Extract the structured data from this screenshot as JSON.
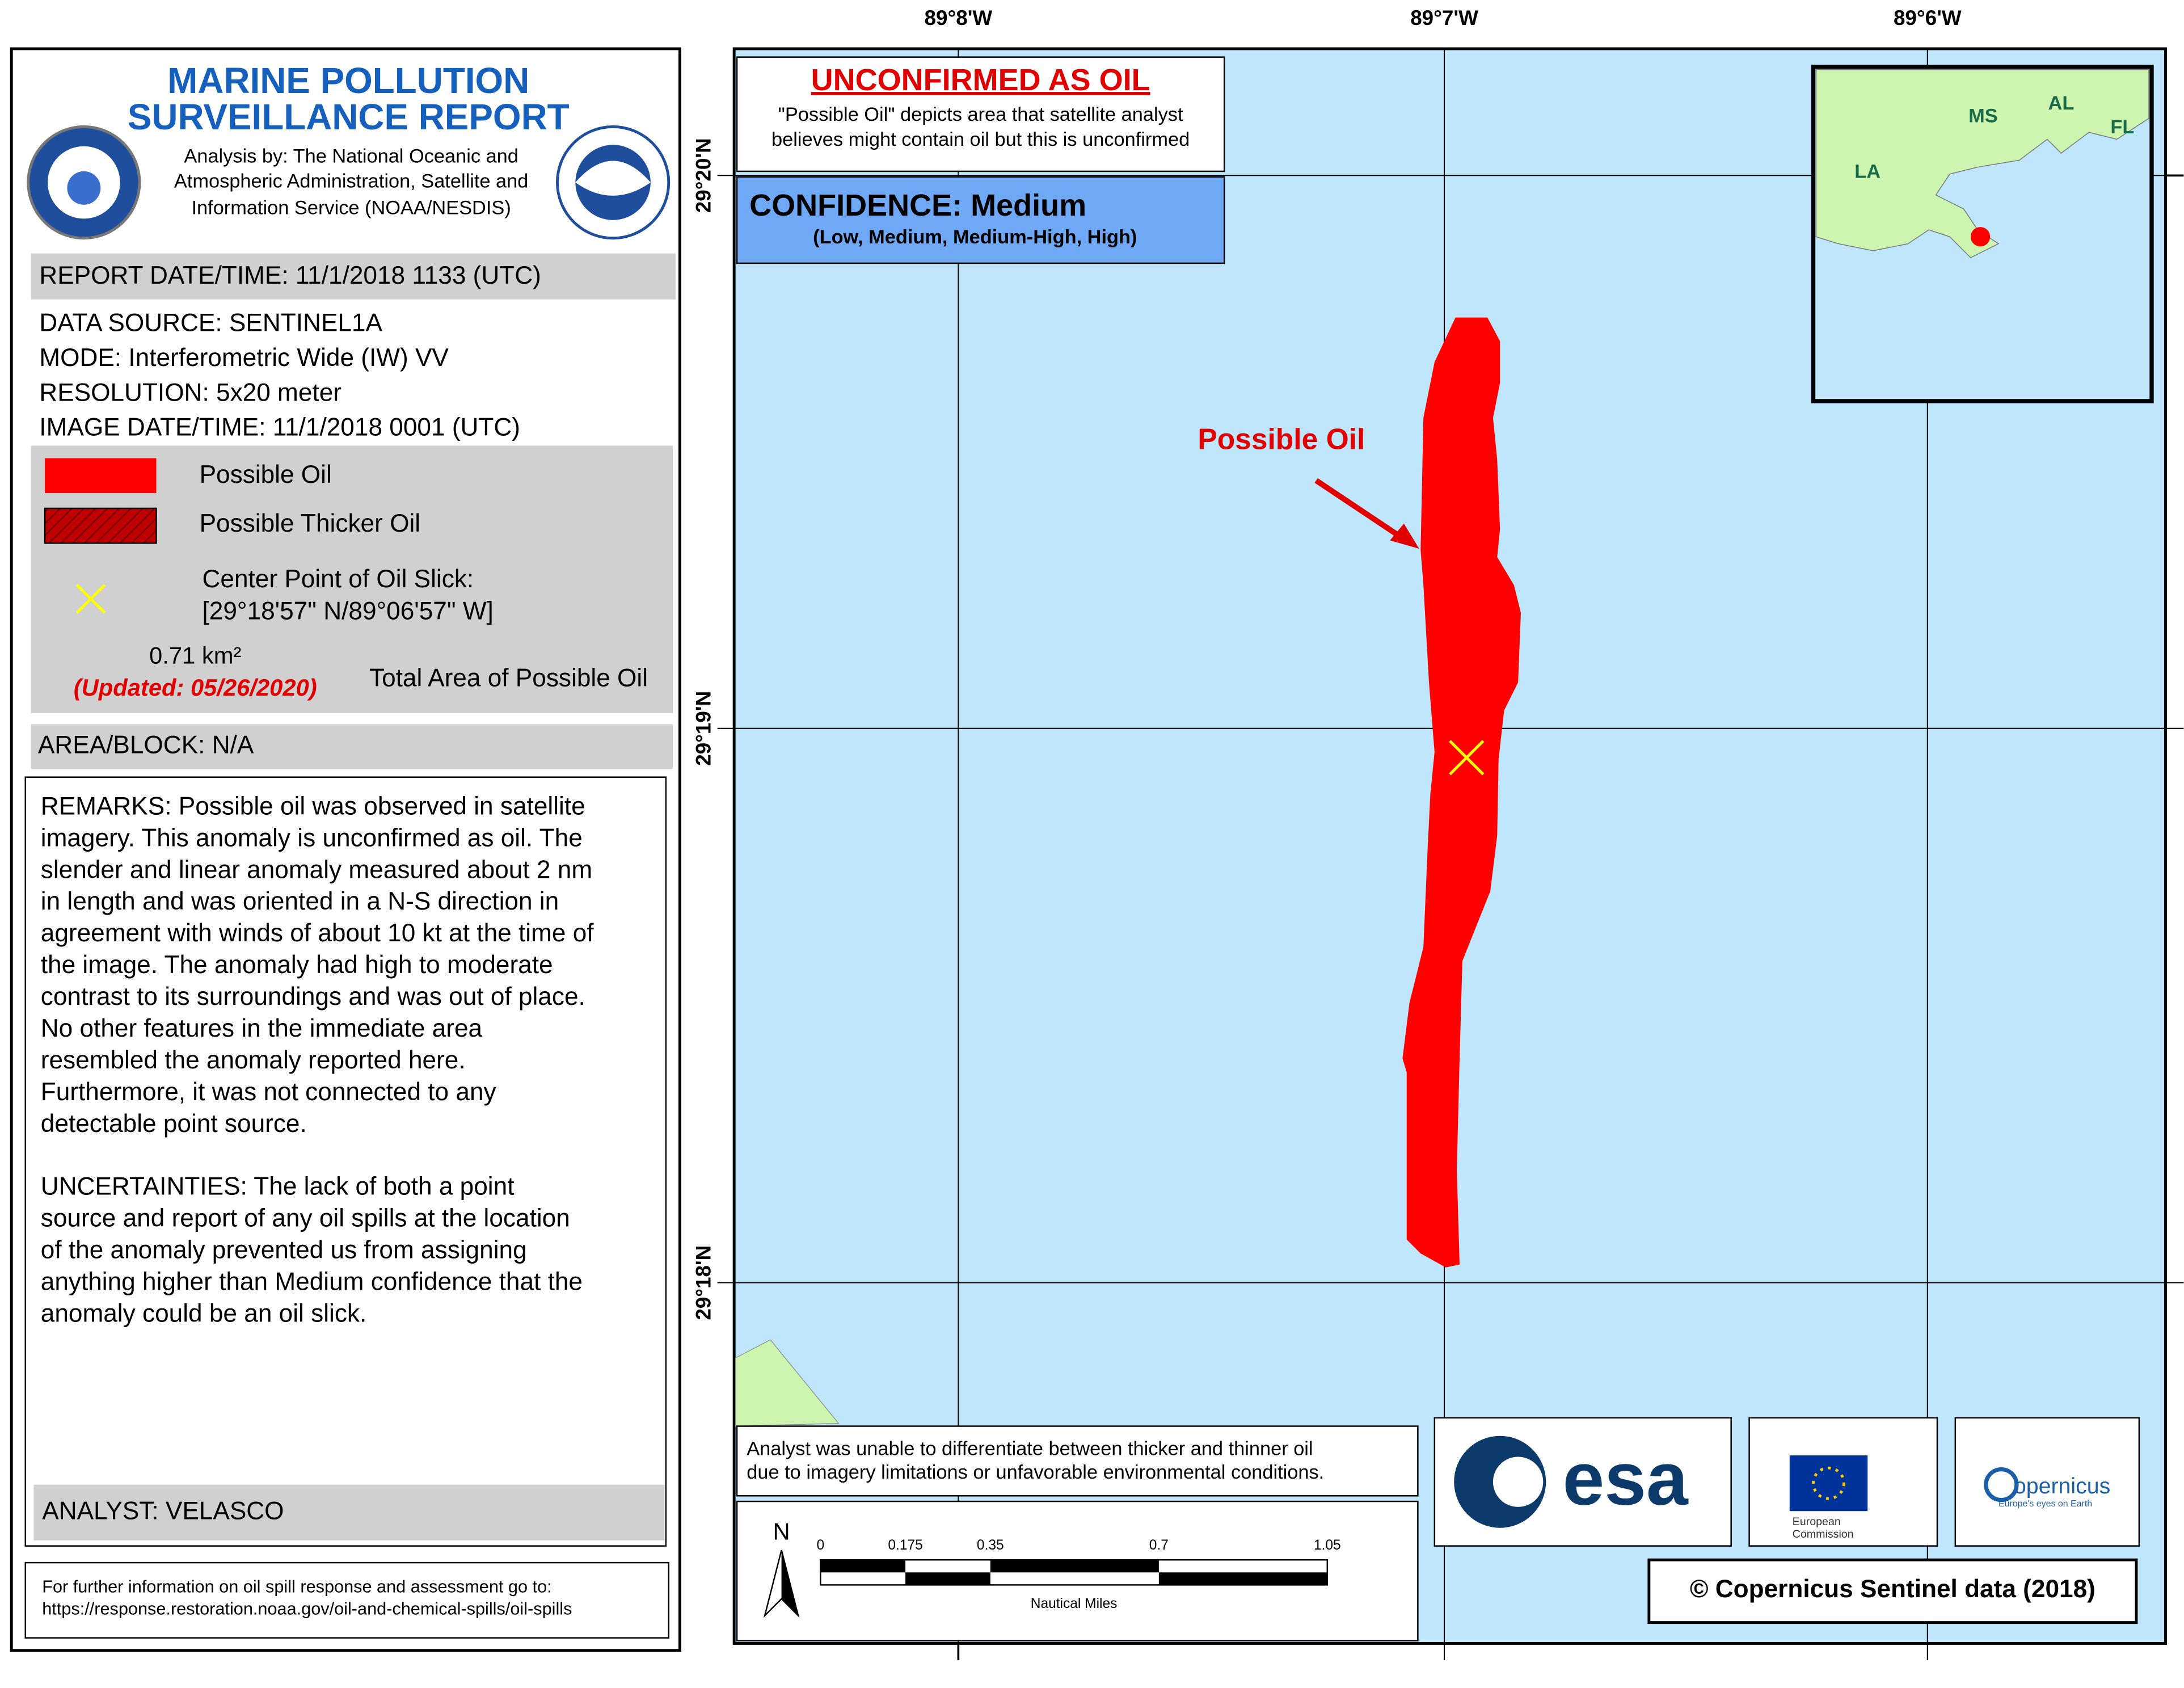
{
  "header": {
    "title_lines": [
      "MARINE POLLUTION",
      "SURVEILLANCE REPORT"
    ],
    "analysis_lines": [
      "Analysis by: The National Oceanic and",
      "Atmospheric Administration, Satellite and",
      "Information Service (NOAA/NESDIS)"
    ]
  },
  "report_datetime": "REPORT DATE/TIME: 11/1/2018 1133 (UTC)",
  "details": [
    "DATA SOURCE: SENTINEL1A",
    "MODE: Interferometric Wide (IW) VV",
    "RESOLUTION: 5x20 meter",
    "IMAGE DATE/TIME: 11/1/2018 0001 (UTC)"
  ],
  "legend": {
    "possible_oil": "Possible Oil",
    "thicker_oil": "Possible Thicker Oil",
    "center_point_lines": [
      "Center Point of Oil Slick:",
      "[29°18'57\" N/89°06'57\" W]"
    ],
    "area": "0.71 km²",
    "updated": "(Updated: 05/26/2020)",
    "area_label": "Total Area of Possible Oil"
  },
  "area_block": "AREA/BLOCK: N/A",
  "remarks_lines": [
    "REMARKS: Possible oil was observed in satellite",
    "imagery. This anomaly is unconfirmed as oil. The",
    "slender and linear anomaly measured about 2 nm",
    "in length and was oriented in a N-S direction in",
    "agreement with winds of about 10 kt at the time of",
    "the image. The anomaly had high to moderate",
    "contrast to its surroundings and was out of place.",
    "No other features in the immediate area",
    "resembled the anomaly reported here.",
    "Furthermore, it was not connected to any",
    "detectable point source."
  ],
  "uncertainties_lines": [
    "UNCERTAINTIES: The lack of both a point",
    "source and report of any oil spills at the location",
    "of the anomaly prevented us from assigning",
    "anything higher than Medium confidence that the",
    "anomaly could be an oil slick."
  ],
  "analyst": "ANALYST: VELASCO",
  "footer_lines": [
    "For further information on oil spill response and assessment go to:",
    "https://response.restoration.noaa.gov/oil-and-chemical-spills/oil-spills"
  ],
  "map": {
    "lon_labels": [
      "89°8'W",
      "89°7'W",
      "89°6'W"
    ],
    "lat_labels": [
      "29°20'N",
      "29°19'N",
      "29°18'N"
    ],
    "status": "UNCONFIRMED AS OIL",
    "status_note_lines": [
      "\"Possible Oil\" depicts area that satellite analyst",
      "believes might contain oil but this is unconfirmed"
    ],
    "confidence": "CONFIDENCE: Medium",
    "confidence_scale": "(Low, Medium, Medium-High, High)",
    "annotation": "Possible Oil",
    "inset_labels": [
      "LA",
      "MS",
      "AL",
      "FL"
    ],
    "analyst_note_lines": [
      "Analyst was unable to differentiate between thicker and thinner oil",
      "due to imagery limitations or unfavorable environmental conditions."
    ],
    "north": "N",
    "scale_labels": [
      "0",
      "0.175",
      "0.35",
      "0.7",
      "1.05"
    ],
    "scale_unit": "Nautical Miles",
    "esa": "esa",
    "ec_lines": [
      "European",
      "Commission"
    ],
    "copernicus": "opernicus",
    "copernicus_tagline": "Europe's eyes on Earth",
    "credit": "© Copernicus Sentinel data (2018)"
  }
}
